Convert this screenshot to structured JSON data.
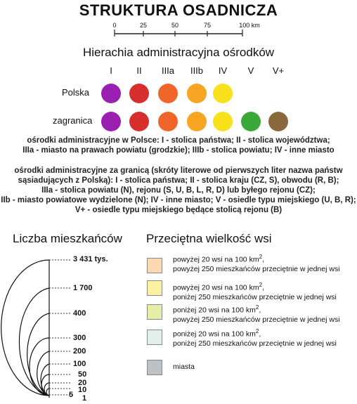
{
  "title": "STRUKTURA OSADNICZA",
  "scale": {
    "ticks": [
      "0",
      "25",
      "50",
      "75",
      "100 km"
    ]
  },
  "hierarchy": {
    "title": "Hierachia administracyjna ośrodków",
    "columns": [
      "I",
      "II",
      "IIIa",
      "IIIb",
      "IV",
      "V",
      "V+"
    ],
    "rows": [
      {
        "label": "Polska",
        "colors": [
          "#9b1fb0",
          "#d92e2e",
          "#f0662a",
          "#f7a623",
          "#f6e11b"
        ]
      },
      {
        "label": "zagranica",
        "colors": [
          "#9b1fb0",
          "#d92e2e",
          "#f0662a",
          "#f7a623",
          "#f6e11b",
          "#3da83a",
          "#8a6a3c"
        ]
      }
    ]
  },
  "description_poland": [
    "ośrodki administracyjne w Polsce: I - stolica państwa; II - stolica województwa;",
    "IIIa - miasto na prawach powiatu (grodzkie); IIIb - stolica powiatu; IV - inne miasto"
  ],
  "description_abroad": [
    "ośrodki administracyjne za granicą (skróty literowe od pierwszych liter nazwa państw",
    "sąsiadujących z Polską): I - stolica państwa; II - stolica kraju (CZ, S), obwodu (R, B);",
    "IIIa - stolica powiatu (N), rejonu (S, U, B, L, R, D) lub byłego rejonu (CZ);",
    "IIb - miasto powiatowe wydzielone (N); IV - inne miasto; V - osiedle typu miejskiego (U, B, R);",
    "V+ - osiedle typu miejskiego będące stolicą rejonu (B)"
  ],
  "population": {
    "title": "Liczba mieszkańców",
    "labels": [
      "3 431 tys.",
      "1 700",
      "400",
      "300",
      "200",
      "100",
      "50",
      "20",
      "10",
      "5",
      "1"
    ]
  },
  "village_size": {
    "title": "Przeciętna wielkość wsi",
    "items": [
      {
        "color": "#fbd9b0",
        "line1_a": "powyżej 20 wsi na 100 km",
        "sup": "2",
        "line1_b": ",",
        "line2": "powyżej 250 mieszkańców przeciętnie w jednej wsi"
      },
      {
        "color": "#fbf0a3",
        "line1_a": "powyżej 20 wsi na 100 km",
        "sup": "2",
        "line1_b": ",",
        "line2": "poniżej 250 mieszkańców przeciętnie w jednej wsi"
      },
      {
        "color": "#e6eda9",
        "line1_a": "poniżej 20 wsi na 100 km",
        "sup": "2",
        "line1_b": ",",
        "line2": "powyżej 250 mieszkańców przeciętnie w jednej wsi"
      },
      {
        "color": "#dff1e6",
        "line1_a": "poniżej 20 wsi na 100 km",
        "sup": "2",
        "line1_b": ",",
        "line2": "poniżej 250 mieszkańców przeciętnie w jednej wsi"
      },
      {
        "color": "#bcc1c5",
        "line1_a": "miasta",
        "sup": "",
        "line1_b": "",
        "line2": ""
      }
    ]
  }
}
